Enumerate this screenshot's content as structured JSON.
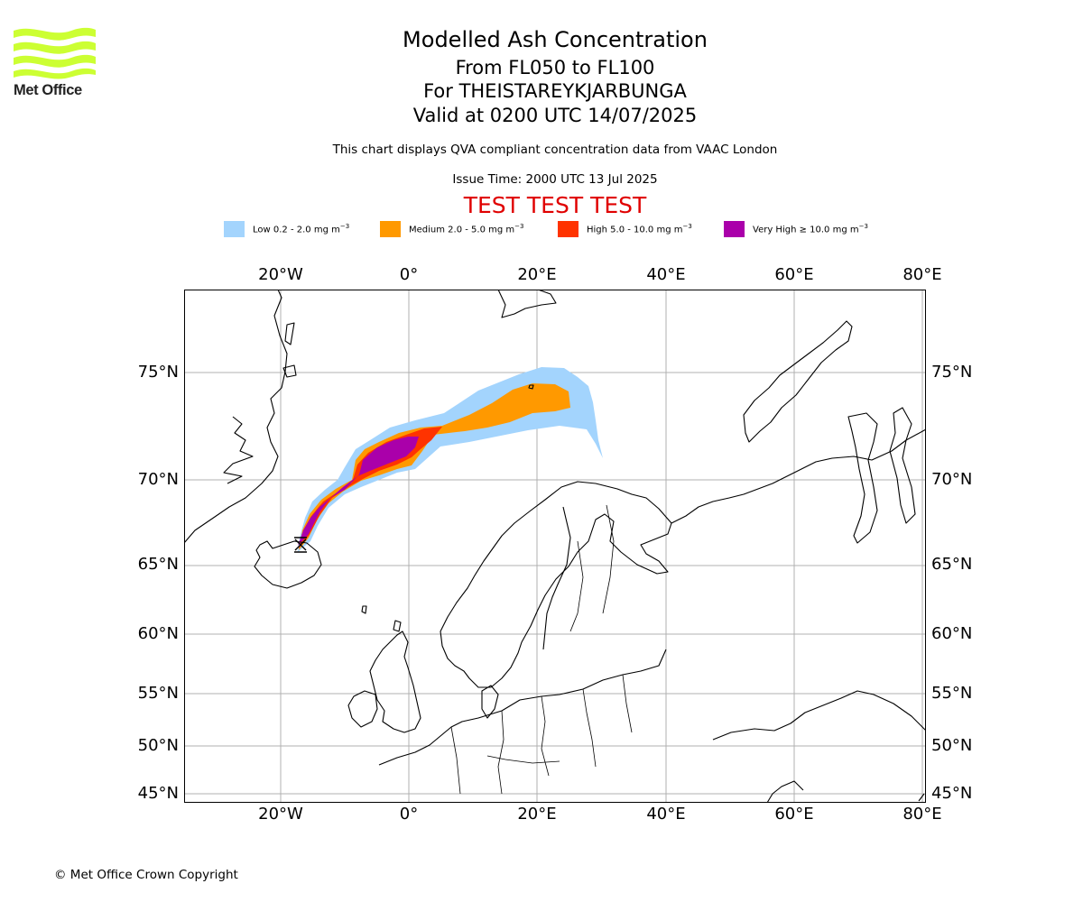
{
  "logo": {
    "text": "Met Office",
    "color": "#ccff33"
  },
  "header": {
    "title": "Modelled Ash Concentration",
    "level_range": "From FL050 to FL100",
    "volcano": "For THEISTAREYKJARBUNGA",
    "valid_time": "Valid at 0200 UTC 14/07/2025",
    "compliance_note": "This chart displays QVA compliant concentration data from VAAC London",
    "issue_time": "Issue Time: 2000 UTC 13 Jul 2025",
    "test_banner": "TEST TEST TEST"
  },
  "legend": [
    {
      "label": "Low 0.2 - 2.0 mg m",
      "unit_exp": "−3",
      "color": "#a3d4fd"
    },
    {
      "label": "Medium 2.0 - 5.0 mg m",
      "unit_exp": "−3",
      "color": "#ff9900"
    },
    {
      "label": "High 5.0 - 10.0 mg m",
      "unit_exp": "−3",
      "color": "#ff3300"
    },
    {
      "label": "Very High ≥ 10.0 mg m",
      "unit_exp": "−3",
      "color": "#aa00aa"
    }
  ],
  "map": {
    "lon_ticks": [
      "20°W",
      "0°",
      "20°E",
      "40°E",
      "60°E",
      "80°E"
    ],
    "lat_ticks": [
      "75°N",
      "70°N",
      "65°N",
      "60°N",
      "55°N",
      "50°N",
      "45°N"
    ],
    "grid": true,
    "region": "North Atlantic / Europe",
    "volcano_marker": "Theistareykjarbunga (N Iceland)"
  },
  "footer": {
    "copyright": "© Met Office Crown Copyright"
  }
}
